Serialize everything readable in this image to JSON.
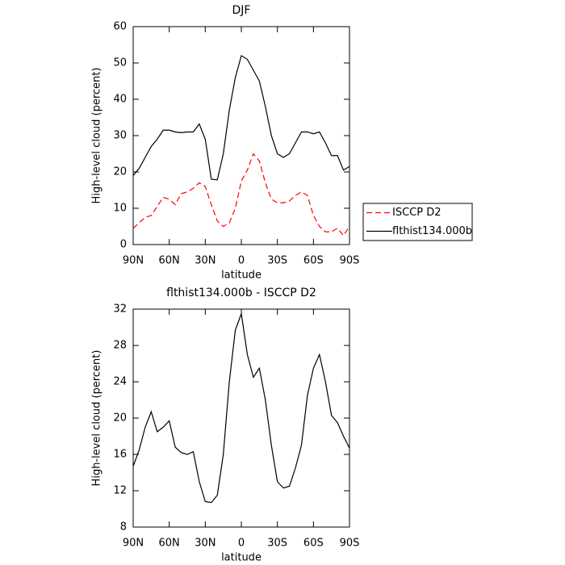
{
  "chart_data": [
    {
      "type": "line",
      "title": "DJF",
      "x_label": "latitude",
      "y_label": "High-level cloud (percent)",
      "x": [
        90,
        85,
        80,
        75,
        70,
        65,
        60,
        55,
        50,
        45,
        40,
        35,
        30,
        25,
        20,
        15,
        10,
        5,
        0,
        -5,
        -10,
        -15,
        -20,
        -25,
        -30,
        -35,
        -40,
        -45,
        -50,
        -55,
        -60,
        -65,
        -70,
        -75,
        -80,
        -85,
        -90
      ],
      "series": [
        {
          "name": "ISCCP D2",
          "color": "#ff0000",
          "dash": true,
          "values": [
            4.5,
            6,
            7.5,
            8,
            10.5,
            13,
            12.5,
            11,
            14,
            14.5,
            15.5,
            17,
            16,
            11,
            6.5,
            5,
            6,
            10,
            17.5,
            20.5,
            25,
            23,
            17,
            12.5,
            11.5,
            11.5,
            12,
            13.5,
            14.5,
            13.5,
            8,
            5,
            3.5,
            3.5,
            4.5,
            2.5,
            5
          ]
        },
        {
          "name": "flthist134.000b",
          "color": "#000000",
          "dash": false,
          "values": [
            19,
            21,
            24,
            27,
            29,
            31.5,
            31.5,
            31,
            30.8,
            31,
            31,
            33.2,
            29,
            18,
            17.8,
            25,
            37,
            46,
            52,
            51,
            48,
            45,
            38,
            30,
            25,
            24,
            25,
            28,
            31,
            31,
            30.5,
            31,
            28,
            24.5,
            24.5,
            20.5,
            21.5
          ]
        }
      ],
      "xlim": [
        90,
        -90
      ],
      "xticks": [
        {
          "value": 90,
          "label": "90N"
        },
        {
          "value": 60,
          "label": "60N"
        },
        {
          "value": 30,
          "label": "30N"
        },
        0,
        {
          "value": -30,
          "label": "30S"
        },
        {
          "value": -60,
          "label": "60S"
        },
        {
          "value": -90,
          "label": "90S"
        }
      ],
      "ylim": [
        0,
        60
      ],
      "yticks": [
        0,
        10,
        20,
        30,
        40,
        50,
        60
      ],
      "legend": "right"
    },
    {
      "type": "line",
      "title": "flthist134.000b - ISCCP D2",
      "x_label": "latitude",
      "y_label": "High-level cloud (percent)",
      "x": [
        90,
        85,
        80,
        75,
        70,
        65,
        60,
        55,
        50,
        45,
        40,
        35,
        30,
        25,
        20,
        15,
        10,
        5,
        0,
        -5,
        -10,
        -15,
        -20,
        -25,
        -30,
        -35,
        -40,
        -45,
        -50,
        -55,
        -60,
        -65,
        -70,
        -75,
        -80,
        -85,
        -90
      ],
      "series": [
        {
          "color": "#000000",
          "dash": false,
          "values": [
            14.7,
            16.5,
            19,
            20.7,
            18.5,
            19,
            19.7,
            16.8,
            16.2,
            16,
            16.3,
            13,
            10.8,
            10.7,
            11.5,
            16,
            24,
            29.7,
            31.5,
            27,
            24.5,
            25.5,
            22,
            17,
            13,
            12.3,
            12.5,
            14.5,
            17,
            22.5,
            25.5,
            27,
            24,
            20.3,
            19.5,
            18,
            16.7
          ]
        }
      ],
      "xlim": [
        90,
        -90
      ],
      "xticks": [
        {
          "value": 90,
          "label": "90N"
        },
        {
          "value": 60,
          "label": "60N"
        },
        {
          "value": 30,
          "label": "30N"
        },
        0,
        {
          "value": -30,
          "label": "30S"
        },
        {
          "value": -60,
          "label": "60S"
        },
        {
          "value": -90,
          "label": "90S"
        }
      ],
      "ylim": [
        8,
        32
      ],
      "yticks": [
        8,
        12,
        16,
        20,
        24,
        28,
        32
      ],
      "legend": false
    }
  ]
}
